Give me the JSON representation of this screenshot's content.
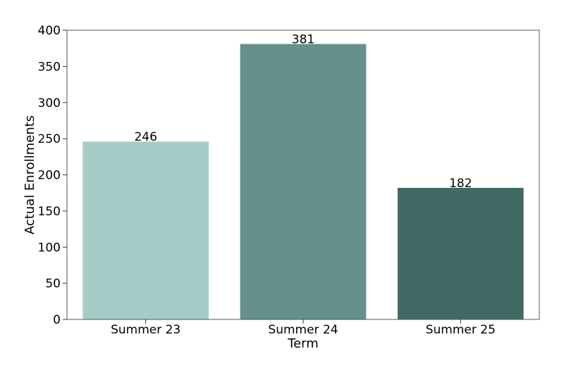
{
  "chart_data": {
    "type": "bar",
    "title": "",
    "xlabel": "Term",
    "ylabel": "Actual Enrollments",
    "categories": [
      "Summer 23",
      "Summer 24",
      "Summer 25"
    ],
    "values": [
      246,
      381,
      182
    ],
    "data_labels": [
      "246",
      "381",
      "182"
    ],
    "bar_colors": [
      "#a5cbc7",
      "#65908b",
      "#416a65"
    ],
    "ylim": [
      0,
      400
    ],
    "yticks": [
      0,
      50,
      100,
      150,
      200,
      250,
      300,
      350,
      400
    ],
    "grid": false,
    "legend": "none"
  }
}
